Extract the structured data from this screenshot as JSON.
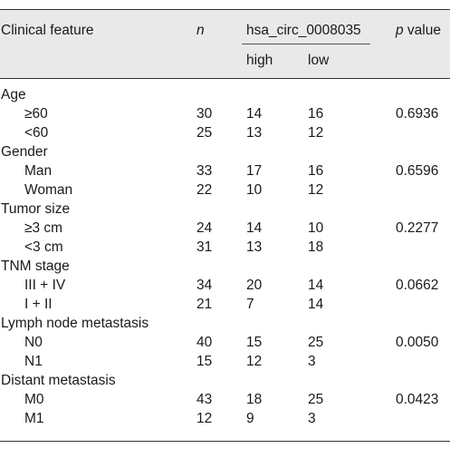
{
  "headers": {
    "feature": "Clinical feature",
    "n": "n",
    "gene": "hsa_circ_0008035",
    "p_italic": "p",
    "p_rest": " value",
    "high": "high",
    "low": "low"
  },
  "groups": [
    {
      "title": "Age",
      "rows": [
        {
          "label": "≥60",
          "n": "30",
          "high": "14",
          "low": "16",
          "p": "0.6936"
        },
        {
          "label": "<60",
          "n": "25",
          "high": "13",
          "low": "12",
          "p": ""
        }
      ]
    },
    {
      "title": "Gender",
      "rows": [
        {
          "label": "Man",
          "n": "33",
          "high": "17",
          "low": "16",
          "p": "0.6596"
        },
        {
          "label": "Woman",
          "n": "22",
          "high": "10",
          "low": "12",
          "p": ""
        }
      ]
    },
    {
      "title": "Tumor size",
      "rows": [
        {
          "label": "≥3 cm",
          "n": "24",
          "high": "14",
          "low": "10",
          "p": "0.2277"
        },
        {
          "label": "<3 cm",
          "n": "31",
          "high": "13",
          "low": "18",
          "p": ""
        }
      ]
    },
    {
      "title": "TNM stage",
      "rows": [
        {
          "label": "III + IV",
          "n": "34",
          "high": "20",
          "low": "14",
          "p": "0.0662"
        },
        {
          "label": "I + II",
          "n": "21",
          "high": "7",
          "low": "14",
          "p": ""
        }
      ]
    },
    {
      "title": "Lymph node metastasis",
      "rows": [
        {
          "label": "N0",
          "n": "40",
          "high": "15",
          "low": "25",
          "p": "0.0050"
        },
        {
          "label": "N1",
          "n": "15",
          "high": "12",
          "low": "3",
          "p": ""
        }
      ]
    },
    {
      "title": "Distant metastasis",
      "rows": [
        {
          "label": "M0",
          "n": "43",
          "high": "18",
          "low": "25",
          "p": "0.0423"
        },
        {
          "label": "M1",
          "n": "12",
          "high": "9",
          "low": "3",
          "p": ""
        }
      ]
    }
  ]
}
